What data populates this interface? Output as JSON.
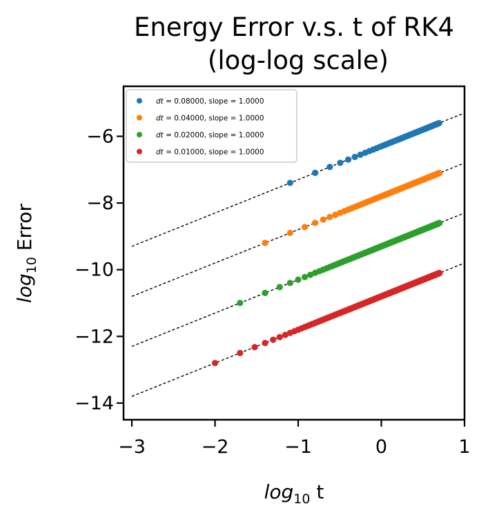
{
  "chart_data": {
    "type": "scatter",
    "title_line1": "Energy Error v.s. t of RK4",
    "title_line2": "(log-log scale)",
    "xlabel": {
      "math": "log",
      "sub": "10",
      "text": " t"
    },
    "ylabel": {
      "math": "log",
      "sub": "10",
      "text": " Error"
    },
    "xlim": [
      -3.1,
      1.0
    ],
    "ylim": [
      -14.5,
      -4.5
    ],
    "xticks": [
      -3,
      -2,
      -1,
      0,
      1
    ],
    "xtick_labels": [
      "−3",
      "−2",
      "−1",
      "0",
      "1"
    ],
    "yticks": [
      -14,
      -12,
      -10,
      -8,
      -6
    ],
    "ytick_labels": [
      "−14",
      "−12",
      "−10",
      "−8",
      "−6"
    ],
    "grid": false,
    "legend_position": "top-left",
    "fit_line_color": "#000000",
    "series": [
      {
        "name": "dt = 0.08000, slope = 1.0000",
        "legend_prefix": "dt",
        "legend_rest": " = 0.08000, slope = 1.0000",
        "dt": 0.08,
        "slope": 1.0,
        "intercept": -6.3,
        "color": "#1f77b4",
        "x_max": 0.7
      },
      {
        "name": "dt = 0.04000, slope = 1.0000",
        "legend_prefix": "dt",
        "legend_rest": " = 0.04000, slope = 1.0000",
        "dt": 0.04,
        "slope": 1.0,
        "intercept": -7.8,
        "color": "#ff7f0e",
        "x_max": 0.7
      },
      {
        "name": "dt = 0.02000, slope = 1.0000",
        "legend_prefix": "dt",
        "legend_rest": " = 0.02000, slope = 1.0000",
        "dt": 0.02,
        "slope": 1.0,
        "intercept": -9.3,
        "color": "#2ca02c",
        "x_max": 0.7
      },
      {
        "name": "dt = 0.01000, slope = 1.0000",
        "legend_prefix": "dt",
        "legend_rest": " = 0.01000, slope = 1.0000",
        "dt": 0.01,
        "slope": 1.0,
        "intercept": -10.8,
        "color": "#d62728",
        "x_max": 0.7
      }
    ]
  }
}
